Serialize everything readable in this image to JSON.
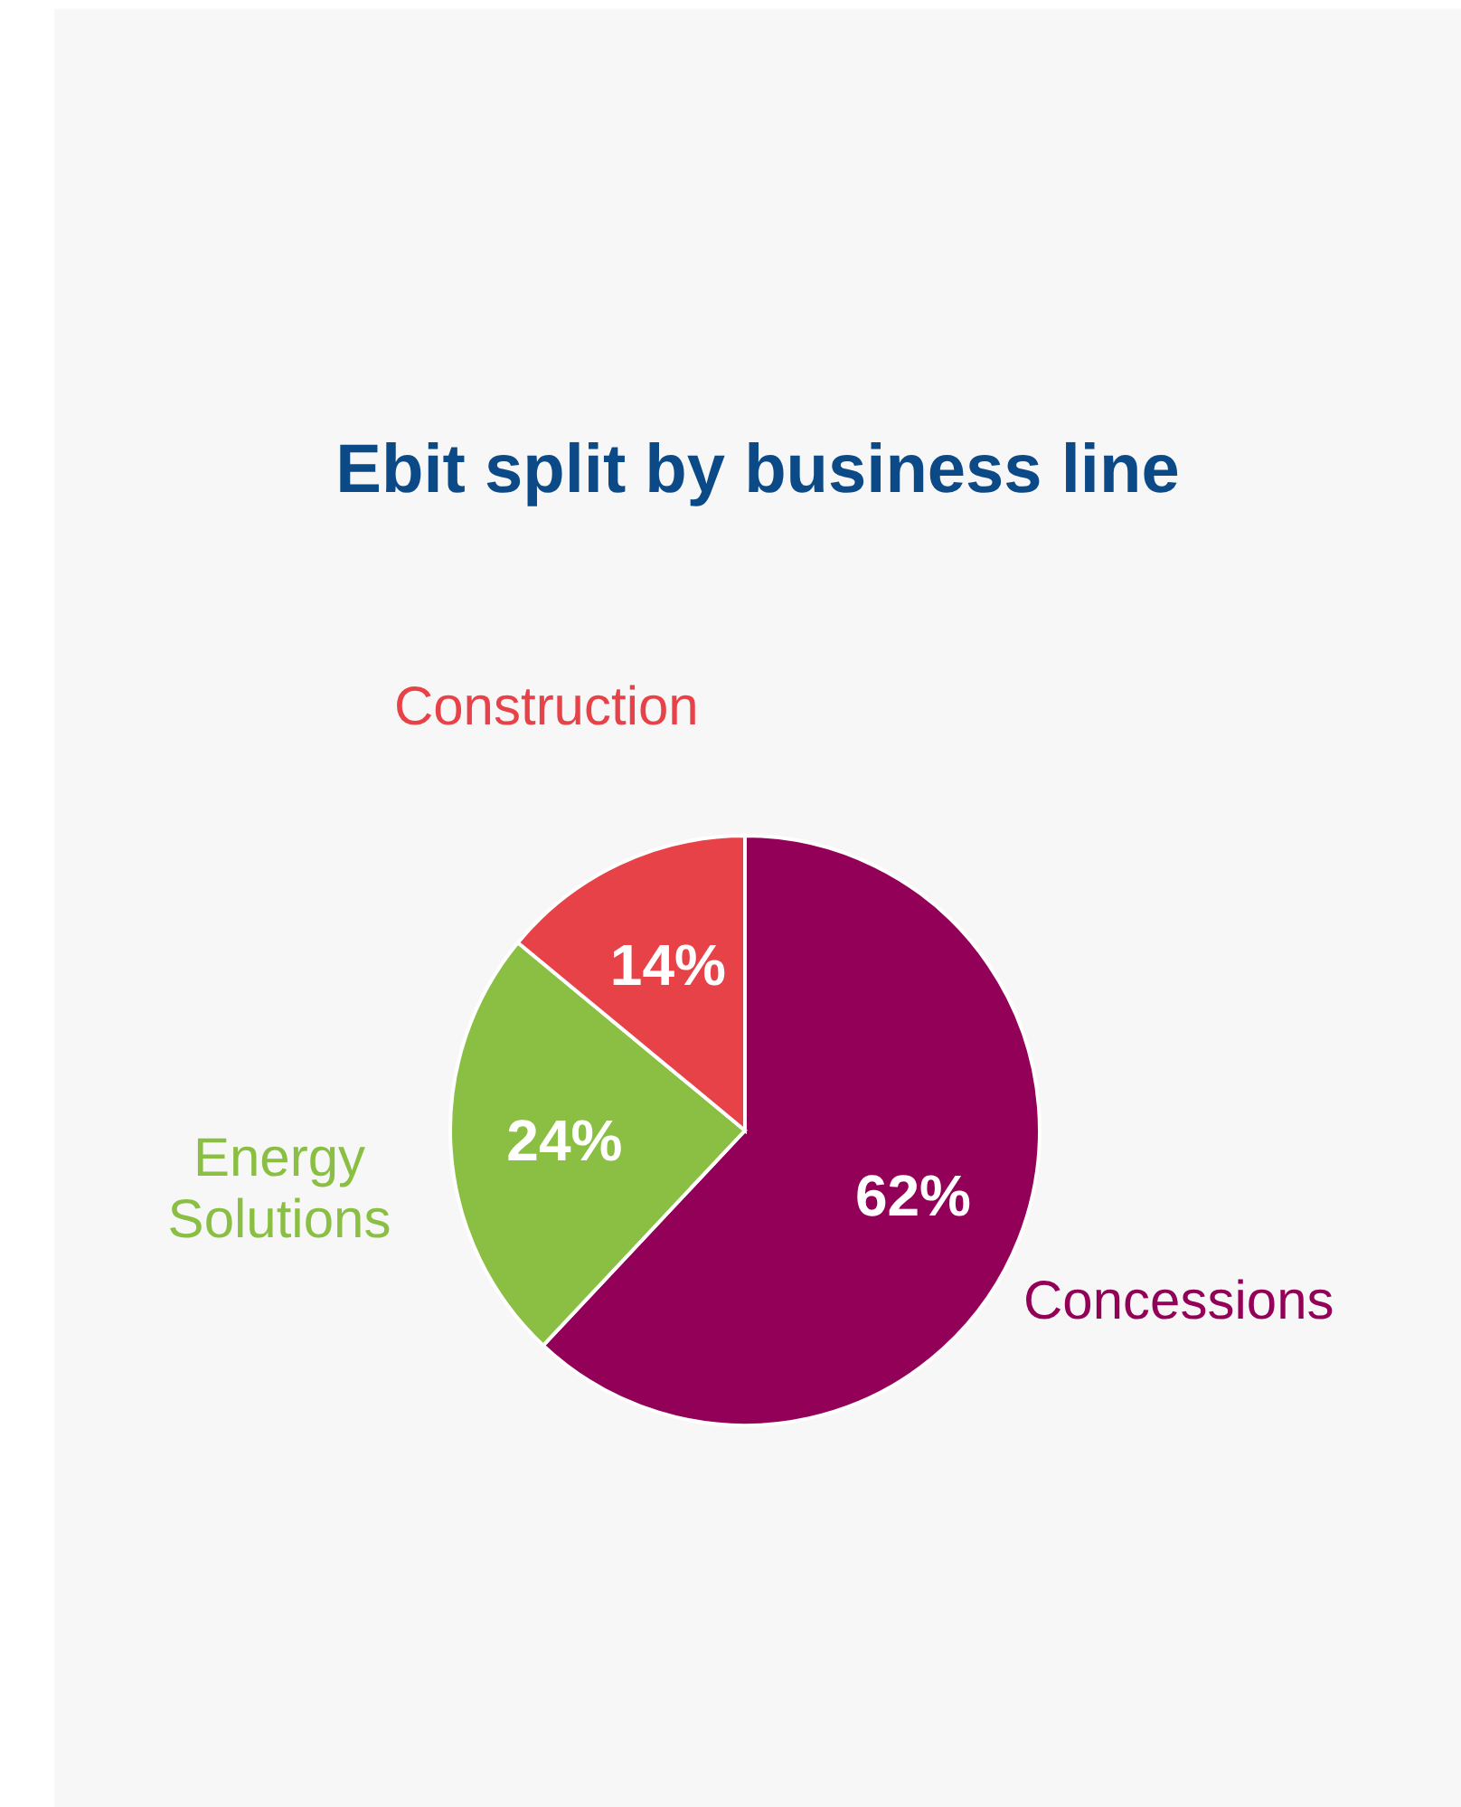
{
  "chart_data": {
    "type": "pie",
    "title": "Ebit split by business line",
    "categories": [
      "Concessions",
      "Energy Solutions",
      "Construction"
    ],
    "values": [
      62,
      24,
      14
    ],
    "colors": [
      "#920057",
      "#8abf43",
      "#e84249"
    ],
    "value_labels": [
      "62%",
      "24%",
      "14%"
    ],
    "legend": false
  }
}
